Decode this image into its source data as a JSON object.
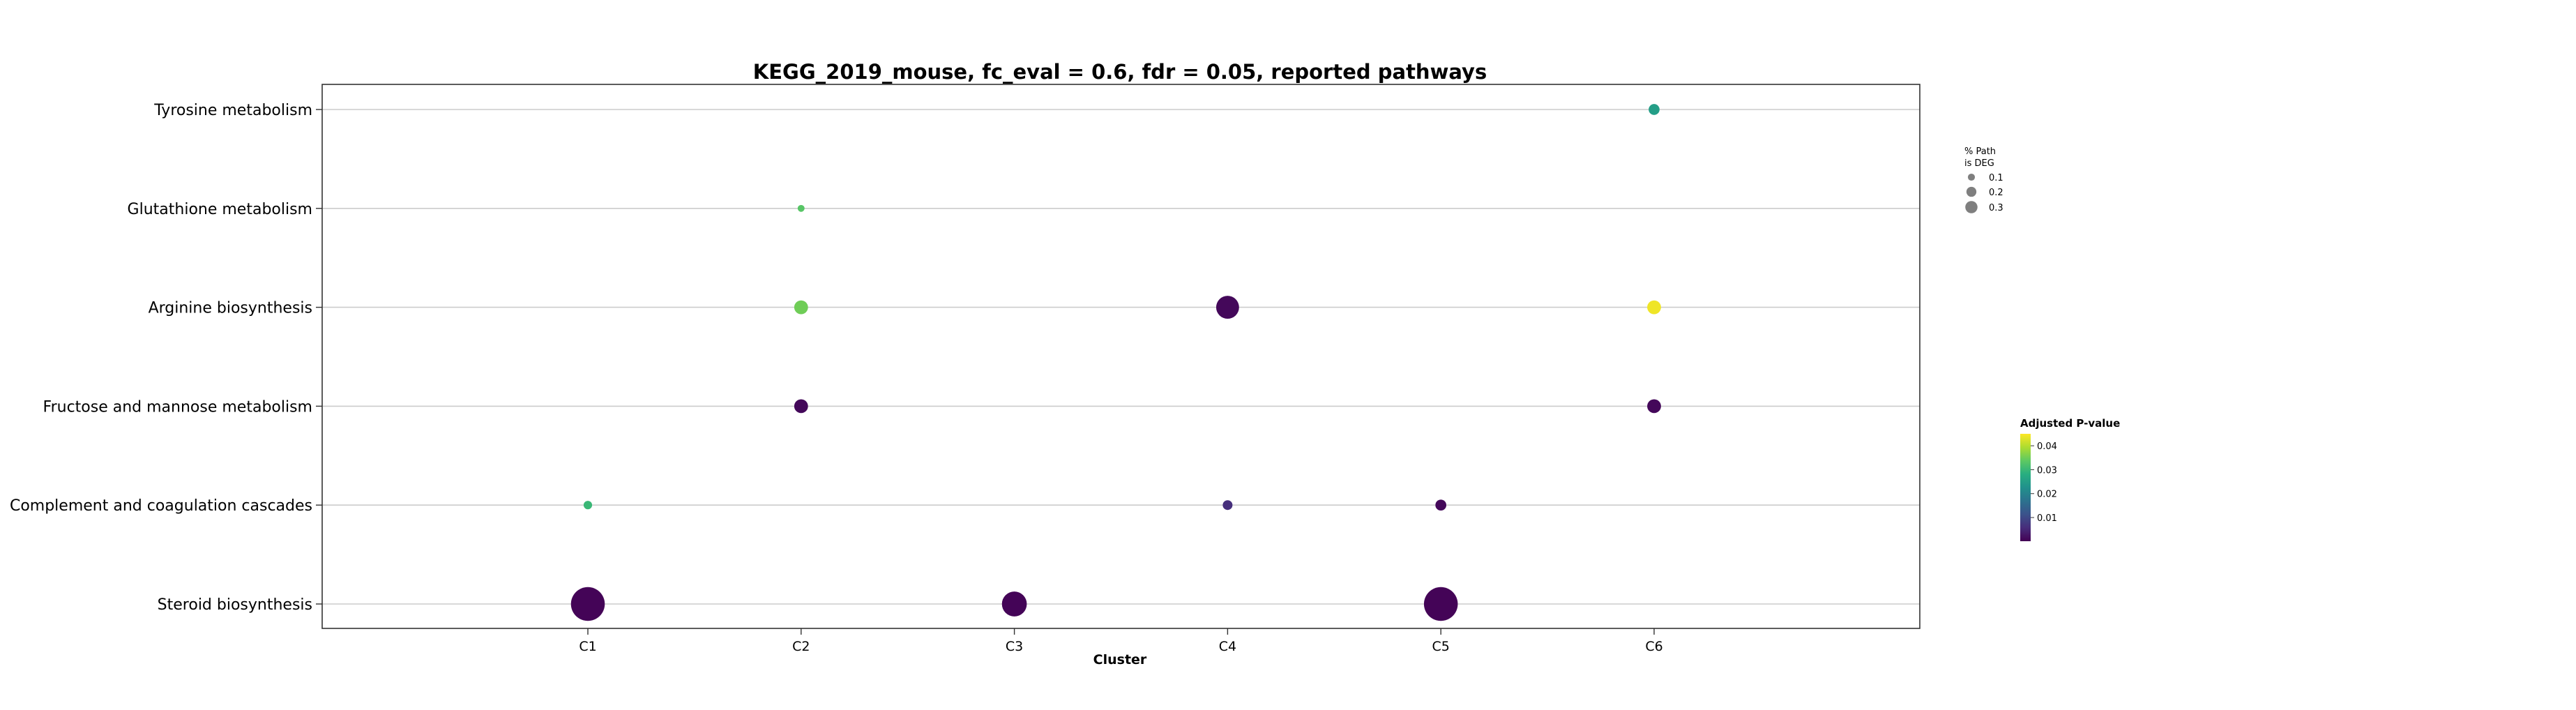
{
  "chart_data": {
    "type": "scatter",
    "title": "KEGG_2019_mouse, fc_eval = 0.6, fdr = 0.05, reported pathways",
    "xlabel": "Cluster",
    "ylabel": "",
    "categories": [
      "C1",
      "C2",
      "C3",
      "C4",
      "C5",
      "C6"
    ],
    "pathways": [
      "Tyrosine metabolism",
      "Glutathione metabolism",
      "Arginine biosynthesis",
      "Fructose and mannose metabolism",
      "Complement and coagulation cascades",
      "Steroid biosynthesis"
    ],
    "grid": "horizontal",
    "size_legend": {
      "title": [
        "% Path",
        "is DEG"
      ],
      "entries": [
        {
          "label": "0.1",
          "value": 0.1
        },
        {
          "label": "0.2",
          "value": 0.2
        },
        {
          "label": "0.3",
          "value": 0.3
        }
      ],
      "placement": "right"
    },
    "colorbar": {
      "title": "Adjusted P-value",
      "ticks": [
        "0.01",
        "0.02",
        "0.03",
        "0.04"
      ],
      "tick_values": [
        0.01,
        0.02,
        0.03,
        0.04
      ],
      "range": [
        0.0001,
        0.045
      ],
      "colormap": "viridis",
      "placement": "right"
    },
    "points": [
      {
        "pathway": "Tyrosine metabolism",
        "cluster": "C6",
        "pct_deg": 0.05,
        "padj": 0.025
      },
      {
        "pathway": "Glutathione metabolism",
        "cluster": "C2",
        "pct_deg": 0.02,
        "padj": 0.033
      },
      {
        "pathway": "Arginine biosynthesis",
        "cluster": "C2",
        "pct_deg": 0.08,
        "padj": 0.035
      },
      {
        "pathway": "Arginine biosynthesis",
        "cluster": "C4",
        "pct_deg": 0.22,
        "padj": 0.001
      },
      {
        "pathway": "Arginine biosynthesis",
        "cluster": "C6",
        "pct_deg": 0.08,
        "padj": 0.044
      },
      {
        "pathway": "Fructose and mannose metabolism",
        "cluster": "C2",
        "pct_deg": 0.08,
        "padj": 0.001
      },
      {
        "pathway": "Fructose and mannose metabolism",
        "cluster": "C6",
        "pct_deg": 0.08,
        "padj": 0.001
      },
      {
        "pathway": "Complement and coagulation cascades",
        "cluster": "C1",
        "pct_deg": 0.03,
        "padj": 0.03
      },
      {
        "pathway": "Complement and coagulation cascades",
        "cluster": "C4",
        "pct_deg": 0.04,
        "padj": 0.006
      },
      {
        "pathway": "Complement and coagulation cascades",
        "cluster": "C5",
        "pct_deg": 0.05,
        "padj": 0.001
      },
      {
        "pathway": "Steroid biosynthesis",
        "cluster": "C1",
        "pct_deg": 0.48,
        "padj": 0.0005
      },
      {
        "pathway": "Steroid biosynthesis",
        "cluster": "C3",
        "pct_deg": 0.26,
        "padj": 0.0005
      },
      {
        "pathway": "Steroid biosynthesis",
        "cluster": "C5",
        "pct_deg": 0.48,
        "padj": 0.0005
      }
    ]
  }
}
